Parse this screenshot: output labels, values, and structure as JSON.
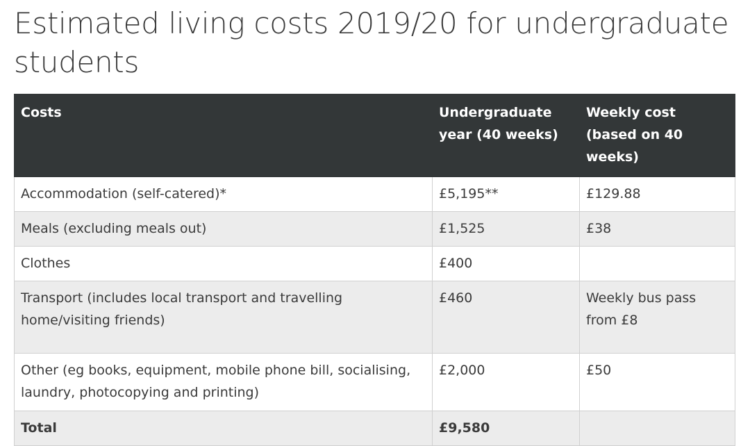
{
  "title": "Estimated living costs 2019/20 for undergraduate students",
  "table": {
    "headers": [
      "Costs",
      "Undergraduate year (40 weeks)",
      "Weekly cost (based on 40 weeks)"
    ],
    "rows": [
      [
        "Accommodation (self-catered)*",
        "£5,195**",
        "£129.88"
      ],
      [
        "Meals (excluding meals out)",
        "£1,525",
        "£38"
      ],
      [
        "Clothes",
        "£400",
        ""
      ],
      [
        "Transport (includes local transport and travelling home/visiting friends)",
        "£460",
        "Weekly bus pass from £8"
      ],
      [
        "Other (eg books, equipment, mobile phone bill, socialising, laundry, photocopying and printing)",
        "£2,000",
        "£50"
      ]
    ],
    "total": [
      "Total",
      "£9,580",
      ""
    ]
  }
}
